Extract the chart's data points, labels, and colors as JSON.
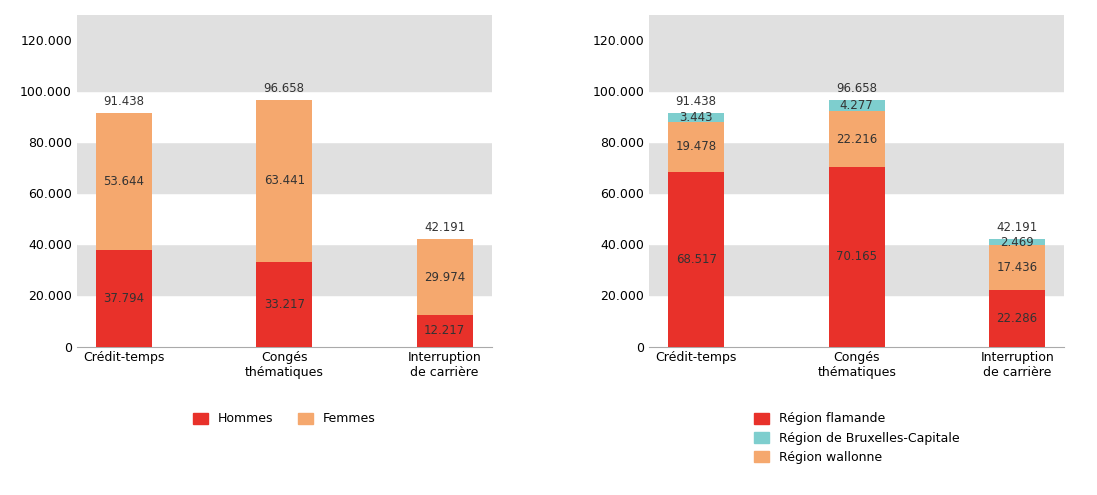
{
  "categories": [
    "Crédit-temps",
    "Congés\nthématiques",
    "Interruption\nde carrière"
  ],
  "chart1": {
    "hommes": [
      37794,
      33217,
      12217
    ],
    "femmes": [
      53644,
      63441,
      29974
    ],
    "totals": [
      91438,
      96658,
      42191
    ],
    "color_hommes": "#e8312a",
    "color_femmes": "#f5a86e",
    "label_hommes": [
      "37.794",
      "33.217",
      "12.217"
    ],
    "label_femmes": [
      "53.644",
      "63.441",
      "29.974"
    ],
    "label_totals": [
      "91.438",
      "96.658",
      "42.191"
    ]
  },
  "chart2": {
    "flamande": [
      68517,
      70165,
      22286
    ],
    "wallonne": [
      19478,
      22216,
      17436
    ],
    "bruxelles": [
      3443,
      4277,
      2469
    ],
    "totals": [
      91438,
      96658,
      42191
    ],
    "color_flamande": "#e8312a",
    "color_wallonne": "#f5a86e",
    "color_bruxelles": "#7ecece",
    "label_flamande": [
      "68.517",
      "70.165",
      "22.286"
    ],
    "label_wallonne": [
      "19.478",
      "22.216",
      "17.436"
    ],
    "label_bruxelles": [
      "3.443",
      "4.277",
      "2.469"
    ],
    "label_totals": [
      "91.438",
      "96.658",
      "42.191"
    ]
  },
  "ylim": [
    0,
    130000
  ],
  "yticks": [
    0,
    20000,
    40000,
    60000,
    80000,
    100000,
    120000
  ],
  "ytick_labels": [
    "0",
    "20.000",
    "40.000",
    "60.000",
    "80.000",
    "100.000",
    "120.000"
  ],
  "band_color": "#e0e0e0",
  "white_color": "#ffffff",
  "bg_color": "#ffffff",
  "bar_width": 0.35,
  "text_color": "#333333",
  "label_fontsize": 8.5,
  "tick_fontsize": 9
}
